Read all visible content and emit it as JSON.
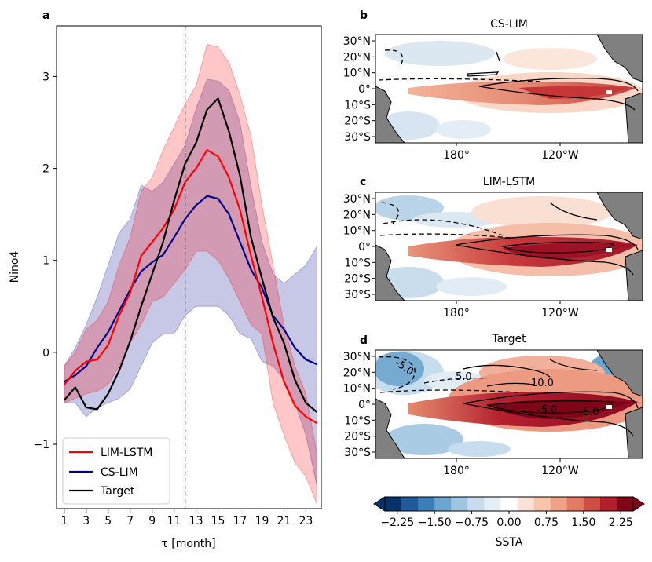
{
  "chart_data": [
    {
      "panel": "a",
      "type": "line",
      "xlabel": "τ [month]",
      "ylabel": "Nino4",
      "xlim": [
        0.3,
        24.4
      ],
      "ylim": [
        -1.7,
        3.55
      ],
      "xticks": [
        "1",
        "3",
        "5",
        "7",
        "9",
        "11",
        "13",
        "15",
        "17",
        "19",
        "21",
        "23"
      ],
      "yticks": [
        "−1",
        "0",
        "1",
        "2",
        "3"
      ],
      "vline": 12,
      "legend": "lower-left",
      "x": [
        1,
        2,
        3,
        4,
        5,
        6,
        7,
        8,
        9,
        10,
        11,
        12,
        13,
        14,
        15,
        16,
        17,
        18,
        19,
        20,
        21,
        22,
        23,
        24
      ],
      "series": [
        {
          "name": "LIM-LSTM",
          "color": "#ff0000",
          "values": [
            -0.35,
            -0.2,
            -0.1,
            -0.08,
            0.08,
            0.4,
            0.65,
            1.05,
            1.2,
            1.35,
            1.55,
            1.85,
            2.0,
            2.2,
            2.13,
            1.9,
            1.55,
            1.05,
            0.6,
            0.1,
            -0.32,
            -0.58,
            -0.7,
            -0.77
          ],
          "band_upper": [
            -0.15,
            0.0,
            0.25,
            0.35,
            0.55,
            0.95,
            1.25,
            1.75,
            1.9,
            2.2,
            2.45,
            2.7,
            2.9,
            3.35,
            3.32,
            3.15,
            2.8,
            2.35,
            1.6,
            0.95,
            0.3,
            -0.15,
            -0.45,
            -1.1
          ],
          "band_lower": [
            -0.55,
            -0.5,
            -0.45,
            -0.42,
            -0.35,
            -0.15,
            0.1,
            0.3,
            0.55,
            0.6,
            0.75,
            0.9,
            1.1,
            1.1,
            1.0,
            0.8,
            0.55,
            0.3,
            0.2,
            -0.55,
            -0.9,
            -1.2,
            -1.35,
            -1.65
          ]
        },
        {
          "name": "CS-LIM",
          "color": "#00008b",
          "values": [
            -0.32,
            -0.25,
            -0.15,
            0.05,
            0.22,
            0.45,
            0.68,
            0.88,
            0.98,
            1.06,
            1.25,
            1.45,
            1.6,
            1.7,
            1.67,
            1.5,
            1.2,
            0.9,
            0.7,
            0.4,
            0.25,
            0.05,
            -0.08,
            -0.13
          ],
          "band_upper": [
            -0.15,
            0.05,
            0.3,
            0.6,
            0.95,
            1.3,
            1.45,
            1.82,
            1.75,
            1.85,
            2.05,
            2.25,
            2.65,
            2.97,
            2.95,
            2.85,
            2.5,
            1.8,
            1.2,
            0.85,
            0.75,
            0.85,
            0.95,
            1.15
          ],
          "band_lower": [
            -0.55,
            -0.55,
            -0.7,
            -0.6,
            -0.55,
            -0.5,
            -0.4,
            -0.15,
            0.1,
            0.2,
            0.2,
            0.4,
            0.5,
            0.5,
            0.5,
            0.4,
            0.2,
            0.15,
            -0.1,
            -0.15,
            -0.3,
            -0.55,
            -0.9,
            -1.45
          ]
        },
        {
          "name": "Target",
          "color": "#000000",
          "values": [
            -0.52,
            -0.38,
            -0.6,
            -0.62,
            -0.45,
            -0.2,
            0.12,
            0.5,
            0.85,
            1.2,
            1.65,
            2.05,
            2.28,
            2.64,
            2.76,
            2.4,
            1.92,
            1.25,
            0.8,
            0.38,
            0.1,
            -0.3,
            -0.55,
            -0.65
          ]
        }
      ]
    },
    {
      "panel": "b",
      "type": "heatmap",
      "title": "CS-LIM",
      "yticks": [
        "30°N",
        "20°N",
        "10°N",
        "0°",
        "10°S",
        "20°S",
        "30°S"
      ],
      "xticks": [
        "180°",
        "120°W"
      ]
    },
    {
      "panel": "c",
      "type": "heatmap",
      "title": "LIM-LSTM",
      "yticks": [
        "30°N",
        "20°N",
        "10°N",
        "0°",
        "10°S",
        "20°S",
        "30°S"
      ],
      "xticks": [
        "180°",
        "120°W"
      ]
    },
    {
      "panel": "d",
      "type": "heatmap",
      "title": "Target",
      "yticks": [
        "30°N",
        "20°N",
        "10°N",
        "0°",
        "10°S",
        "20°S",
        "30°S"
      ],
      "xticks": [
        "180°",
        "120°W"
      ],
      "contour_labels": [
        "-5.0",
        "5.0",
        "10.0",
        "-5.0",
        "5.0"
      ]
    },
    {
      "panel": "colorbar",
      "type": "colorbar",
      "label": "SSTA",
      "range": [
        -2.5,
        2.5
      ],
      "ticks": [
        "−2.25",
        "−1.50",
        "−0.75",
        "0.00",
        "0.75",
        "1.50",
        "2.25"
      ],
      "tick_values": [
        -2.25,
        -1.5,
        -0.75,
        0,
        0.75,
        1.5,
        2.25
      ],
      "colors": [
        "#08306b",
        "#1f5a9c",
        "#3a7fb8",
        "#6aa6cf",
        "#9fc6e0",
        "#c7dcec",
        "#e6eef5",
        "#ffffff",
        "#fbe2d6",
        "#f7c4ac",
        "#f0a187",
        "#e37a61",
        "#cf4d43",
        "#b11f2e",
        "#7f0618"
      ]
    }
  ],
  "labels": {
    "panel_a": "a",
    "panel_b": "b",
    "panel_c": "c",
    "panel_d": "d"
  }
}
